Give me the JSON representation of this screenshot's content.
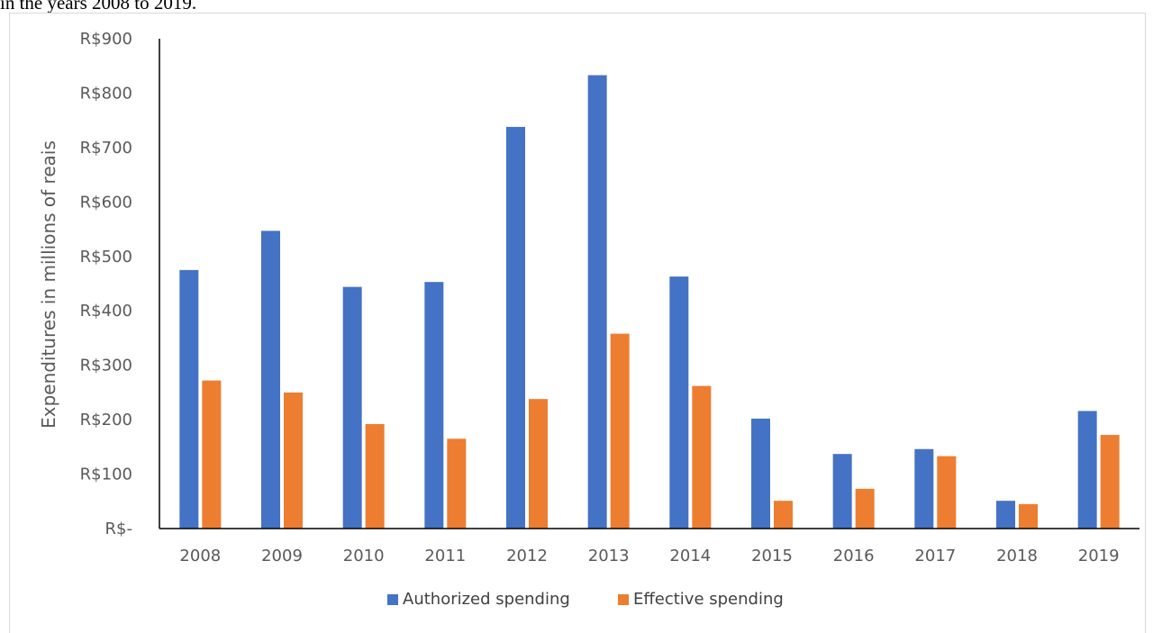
{
  "caption": "in the years 2008 to 2019.",
  "chart_data": {
    "type": "bar",
    "title": "",
    "xlabel": "",
    "ylabel": "Expenditures in millions of reais",
    "ylim": [
      0,
      900
    ],
    "ytick_values": [
      0,
      100,
      200,
      300,
      400,
      500,
      600,
      700,
      800,
      900
    ],
    "ytick_labels": [
      "R$-",
      "R$100",
      "R$200",
      "R$300",
      "R$400",
      "R$500",
      "R$600",
      "R$700",
      "R$800",
      "R$900"
    ],
    "categories": [
      "2008",
      "2009",
      "2010",
      "2011",
      "2012",
      "2013",
      "2014",
      "2015",
      "2016",
      "2017",
      "2018",
      "2019"
    ],
    "series": [
      {
        "name": "Authorized spending",
        "color": "#4472c4",
        "values": [
          475,
          547,
          444,
          453,
          738,
          833,
          463,
          202,
          137,
          146,
          51,
          216
        ]
      },
      {
        "name": "Effective spending",
        "color": "#ed7d31",
        "values": [
          272,
          250,
          192,
          165,
          238,
          358,
          262,
          51,
          73,
          133,
          45,
          172
        ]
      }
    ],
    "grid": false,
    "legend_position": "bottom"
  }
}
